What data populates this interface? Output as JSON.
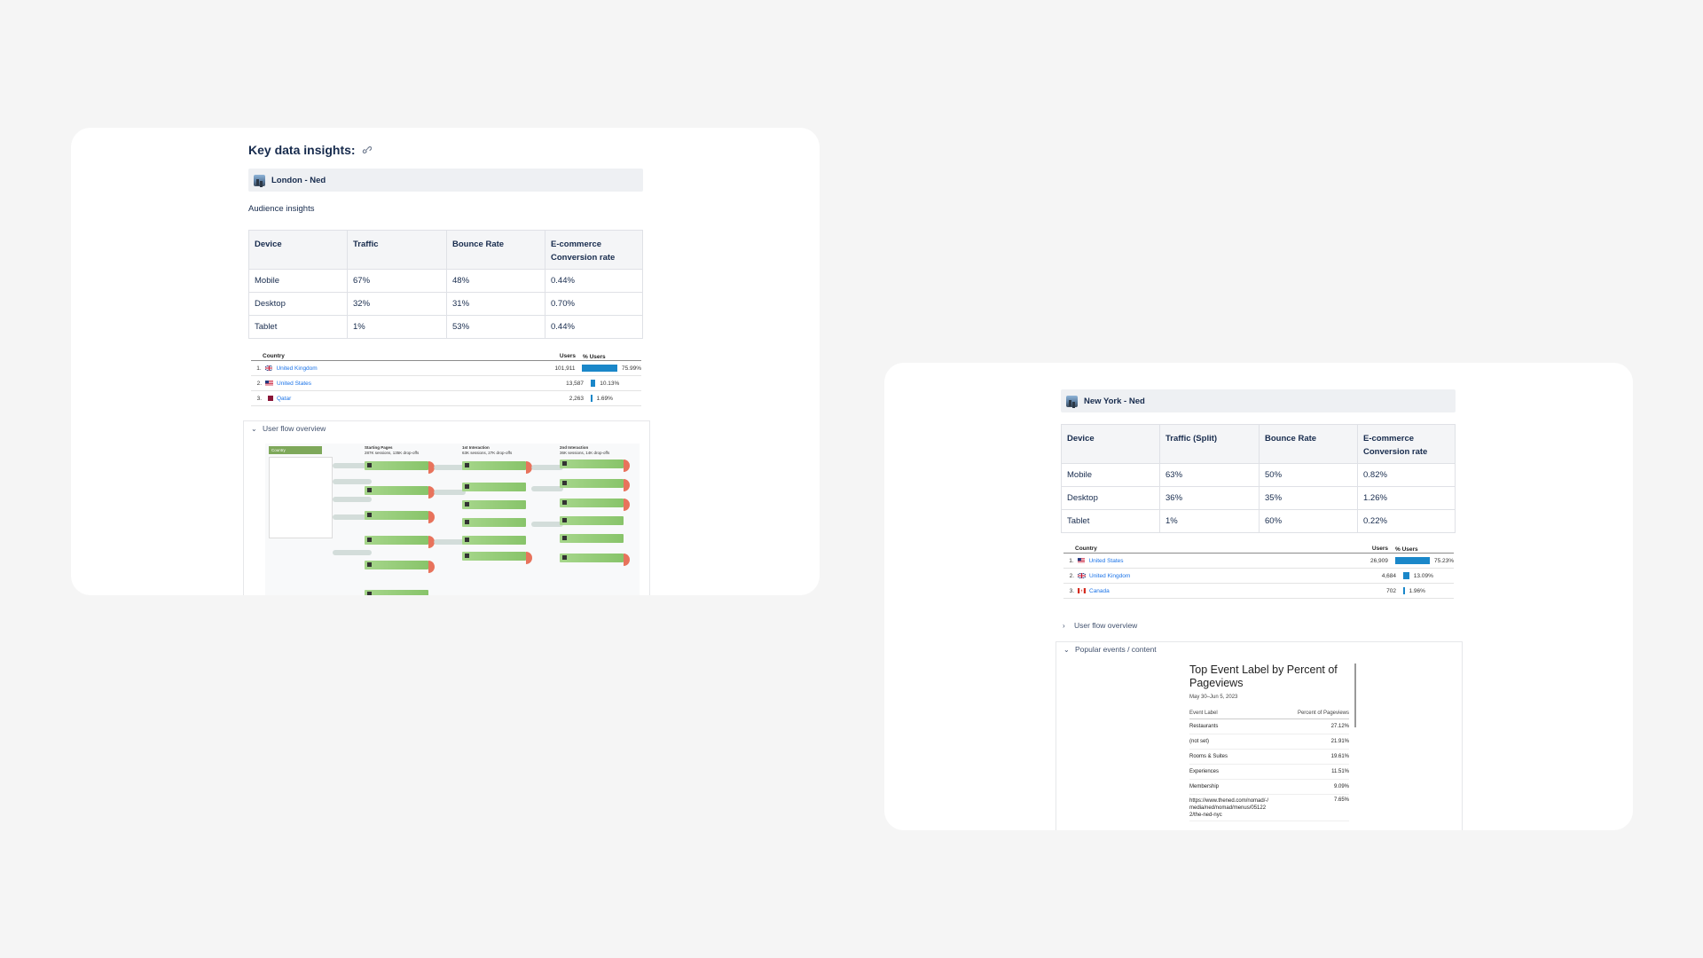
{
  "london": {
    "page_title": "Key data insights:",
    "panel_title": "London - Ned",
    "subheading": "Audience insights",
    "table": {
      "headers": [
        "Device",
        "Traffic",
        "Bounce Rate",
        "E-commerce Conversion rate"
      ],
      "rows": [
        [
          "Mobile",
          "67%",
          "48%",
          "0.44%"
        ],
        [
          "Desktop",
          "32%",
          "31%",
          "0.70%"
        ],
        [
          "Tablet",
          "1%",
          "53%",
          "0.44%"
        ]
      ]
    },
    "countries": {
      "headers": [
        "Country",
        "Users",
        "% Users"
      ],
      "rows": [
        {
          "idx": "1.",
          "country": "United Kingdom",
          "users": "101,911",
          "pct": "75.99%",
          "share": 0.7599
        },
        {
          "idx": "2.",
          "country": "United States",
          "users": "13,587",
          "pct": "10.13%",
          "share": 0.1013
        },
        {
          "idx": "3.",
          "country": "Qatar",
          "users": "2,263",
          "pct": "1.69%",
          "share": 0.0169
        }
      ]
    },
    "user_flow": {
      "label": "User flow overview",
      "dropdown": "Country",
      "columns": [
        "Starting Pages",
        "1st Interaction",
        "2nd Interaction"
      ],
      "column_sub": [
        "287K sessions, 135K drop-offs",
        "63K sessions, 27K drop-offs",
        "36K sessions, 14K drop-offs"
      ]
    }
  },
  "newyork": {
    "panel_title": "New York - Ned",
    "table": {
      "headers": [
        "Device",
        "Traffic (Split)",
        "Bounce Rate",
        "E-commerce Conversion rate"
      ],
      "rows": [
        [
          "Mobile",
          "63%",
          "50%",
          "0.82%"
        ],
        [
          "Desktop",
          "36%",
          "35%",
          "1.26%"
        ],
        [
          "Tablet",
          "1%",
          "60%",
          "0.22%"
        ]
      ]
    },
    "countries": {
      "headers": [
        "Country",
        "Users",
        "% Users"
      ],
      "rows": [
        {
          "idx": "1.",
          "country": "United States",
          "users": "26,909",
          "pct": "75.23%",
          "share": 0.7523
        },
        {
          "idx": "2.",
          "country": "United Kingdom",
          "users": "4,684",
          "pct": "13.09%",
          "share": 0.1309
        },
        {
          "idx": "3.",
          "country": "Canada",
          "users": "702",
          "pct": "1.96%",
          "share": 0.0196
        }
      ]
    },
    "user_flow_label": "User flow overview",
    "popular": {
      "label": "Popular events / content",
      "title": "Top Event Label by Percent of Pageviews",
      "date": "May 30–Jun 5, 2023",
      "col_label": "Event Label",
      "col_value": "Percent of Pageviews",
      "rows": [
        [
          "Restaurants",
          "27.12%"
        ],
        [
          "(not set)",
          "21.91%"
        ],
        [
          "Rooms & Suites",
          "19.61%"
        ],
        [
          "Experiences",
          "11.51%"
        ],
        [
          "Membership",
          "9.09%"
        ],
        [
          "https://www.thened.com/nomad/-/media/ned/nomad/menus/051222/the-ned-nyc",
          "7.65%"
        ]
      ]
    }
  },
  "colors": {
    "background": "#f5f5f5",
    "card": "#ffffff",
    "link": "#1a73e8",
    "bar": "#1a87c9",
    "flow_node": "#88c46a",
    "flow_drop": "#e8735c"
  }
}
